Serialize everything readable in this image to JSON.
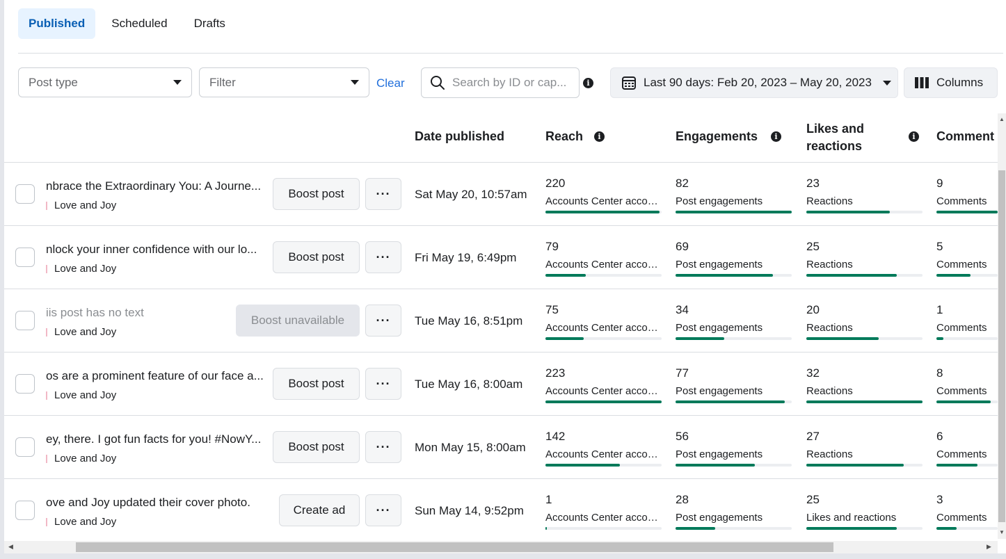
{
  "tabs": [
    {
      "label": "Published",
      "active": true
    },
    {
      "label": "Scheduled",
      "active": false
    },
    {
      "label": "Drafts",
      "active": false
    }
  ],
  "filters": {
    "post_type_placeholder": "Post type",
    "filter_placeholder": "Filter",
    "clear_label": "Clear",
    "search_placeholder": "Search by ID or cap...",
    "date_range": "Last 90 days: Feb 20, 2023 – May 20, 2023",
    "columns_label": "Columns"
  },
  "table": {
    "headers": {
      "date_published": "Date published",
      "reach": "Reach",
      "engagements": "Engagements",
      "likes_line1": "Likes and",
      "likes_line2": "reactions",
      "comments": "Comment"
    },
    "rows": [
      {
        "caption": "nbrace the Extraordinary You: A Journe...",
        "page": "Love and Joy",
        "action": "Boost post",
        "disabled": false,
        "date": "Sat May 20, 10:57am",
        "reach": "220",
        "reach_label": "Accounts Center accou...",
        "reach_pct": 98,
        "eng": "82",
        "eng_label": "Post engagements",
        "eng_pct": 100,
        "likes": "23",
        "likes_label": "Reactions",
        "likes_pct": 72,
        "comments": "9",
        "comments_label": "Comments",
        "comments_pct": 100
      },
      {
        "caption": "nlock your inner confidence with our lo...",
        "page": "Love and Joy",
        "action": "Boost post",
        "disabled": false,
        "date": "Fri May 19, 6:49pm",
        "reach": "79",
        "reach_label": "Accounts Center accou...",
        "reach_pct": 35,
        "eng": "69",
        "eng_label": "Post engagements",
        "eng_pct": 84,
        "likes": "25",
        "likes_label": "Reactions",
        "likes_pct": 78,
        "comments": "5",
        "comments_label": "Comments",
        "comments_pct": 56
      },
      {
        "caption": "iis post has no text",
        "page": "Love and Joy",
        "action": "Boost unavailable",
        "disabled": true,
        "date": "Tue May 16, 8:51pm",
        "reach": "75",
        "reach_label": "Accounts Center accou...",
        "reach_pct": 33,
        "eng": "34",
        "eng_label": "Post engagements",
        "eng_pct": 42,
        "likes": "20",
        "likes_label": "Reactions",
        "likes_pct": 62,
        "comments": "1",
        "comments_label": "Comments",
        "comments_pct": 11
      },
      {
        "caption": "os are a prominent feature of our face a...",
        "page": "Love and Joy",
        "action": "Boost post",
        "disabled": false,
        "date": "Tue May 16, 8:00am",
        "reach": "223",
        "reach_label": "Accounts Center accou...",
        "reach_pct": 100,
        "eng": "77",
        "eng_label": "Post engagements",
        "eng_pct": 94,
        "likes": "32",
        "likes_label": "Reactions",
        "likes_pct": 100,
        "comments": "8",
        "comments_label": "Comments",
        "comments_pct": 89
      },
      {
        "caption": "ey, there. I got fun facts for you! #NowY...",
        "page": "Love and Joy",
        "action": "Boost post",
        "disabled": false,
        "date": "Mon May 15, 8:00am",
        "reach": "142",
        "reach_label": "Accounts Center accou...",
        "reach_pct": 64,
        "eng": "56",
        "eng_label": "Post engagements",
        "eng_pct": 68,
        "likes": "27",
        "likes_label": "Reactions",
        "likes_pct": 84,
        "comments": "6",
        "comments_label": "Comments",
        "comments_pct": 67
      },
      {
        "caption": "ove and Joy updated their cover photo.",
        "page": "Love and Joy",
        "action": "Create ad",
        "disabled": false,
        "date": "Sun May 14, 9:52pm",
        "reach": "1",
        "reach_label": "Accounts Center accou...",
        "reach_pct": 1,
        "eng": "28",
        "eng_label": "Post engagements",
        "eng_pct": 34,
        "likes": "25",
        "likes_label": "Likes and reactions",
        "likes_pct": 78,
        "comments": "3",
        "comments_label": "Comments",
        "comments_pct": 33
      }
    ]
  },
  "colors": {
    "accent": "#0a5fb4",
    "bar_fill": "#007a5a"
  }
}
